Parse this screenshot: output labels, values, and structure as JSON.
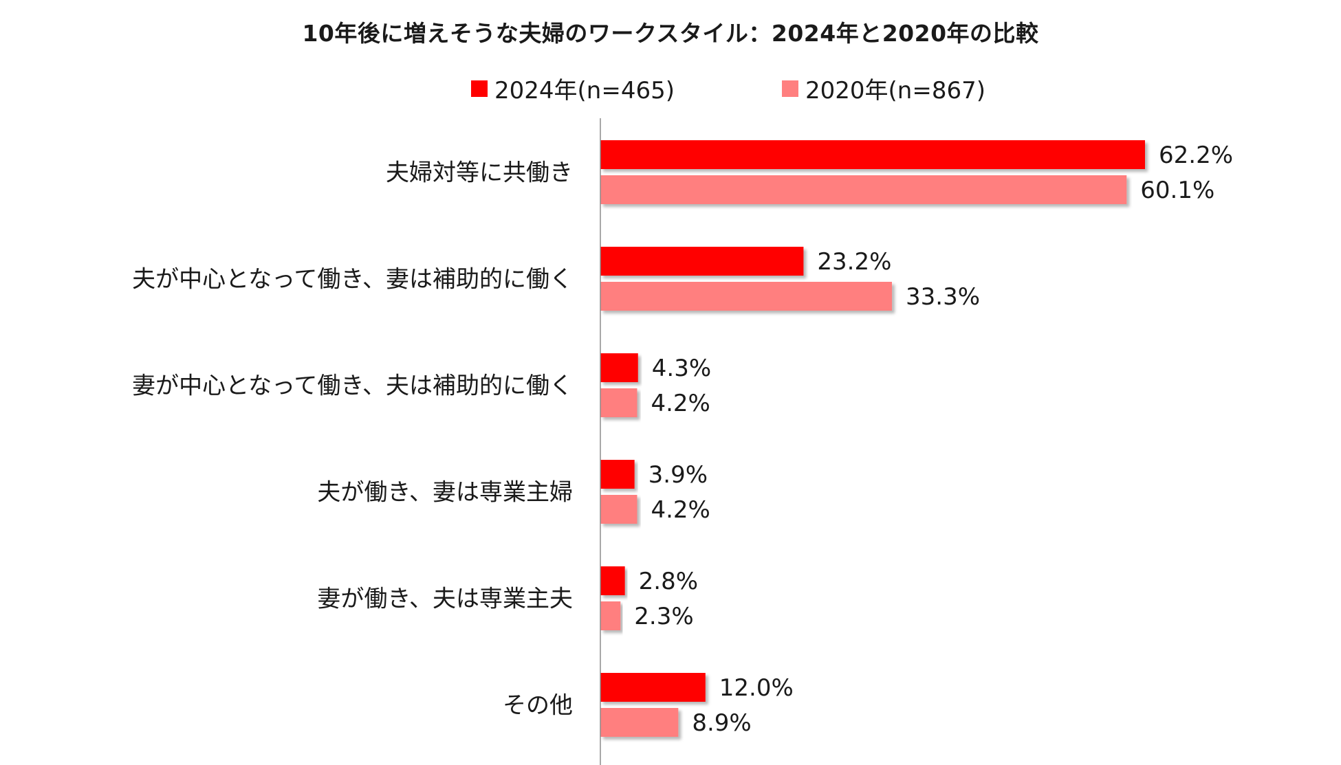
{
  "chart_data": {
    "type": "bar",
    "orientation": "horizontal",
    "title": "10年後に増えそうな夫婦のワークスタイル：2024年と2020年の比較",
    "categories": [
      "夫婦対等に共働き",
      "夫が中心となって働き、妻は補助的に働く",
      "妻が中心となって働き、夫は補助的に働く",
      "夫が働き、妻は専業主婦",
      "妻が働き、夫は専業主夫",
      "その他"
    ],
    "series": [
      {
        "name": "2024年(n=465)",
        "color": "#ff0000",
        "values": [
          62.2,
          23.2,
          4.3,
          3.9,
          2.8,
          12.0
        ],
        "labels": [
          "62.2%",
          "23.2%",
          "4.3%",
          "3.9%",
          "2.8%",
          "12.0%"
        ]
      },
      {
        "name": "2020年(n=867)",
        "color": "#ff7f7f",
        "values": [
          60.1,
          33.3,
          4.2,
          4.2,
          2.3,
          8.9
        ],
        "labels": [
          "60.1%",
          "33.3%",
          "4.2%",
          "4.2%",
          "2.3%",
          "8.9%"
        ]
      }
    ],
    "xlim": [
      0,
      70
    ],
    "legend_position": "top",
    "grid": false
  }
}
